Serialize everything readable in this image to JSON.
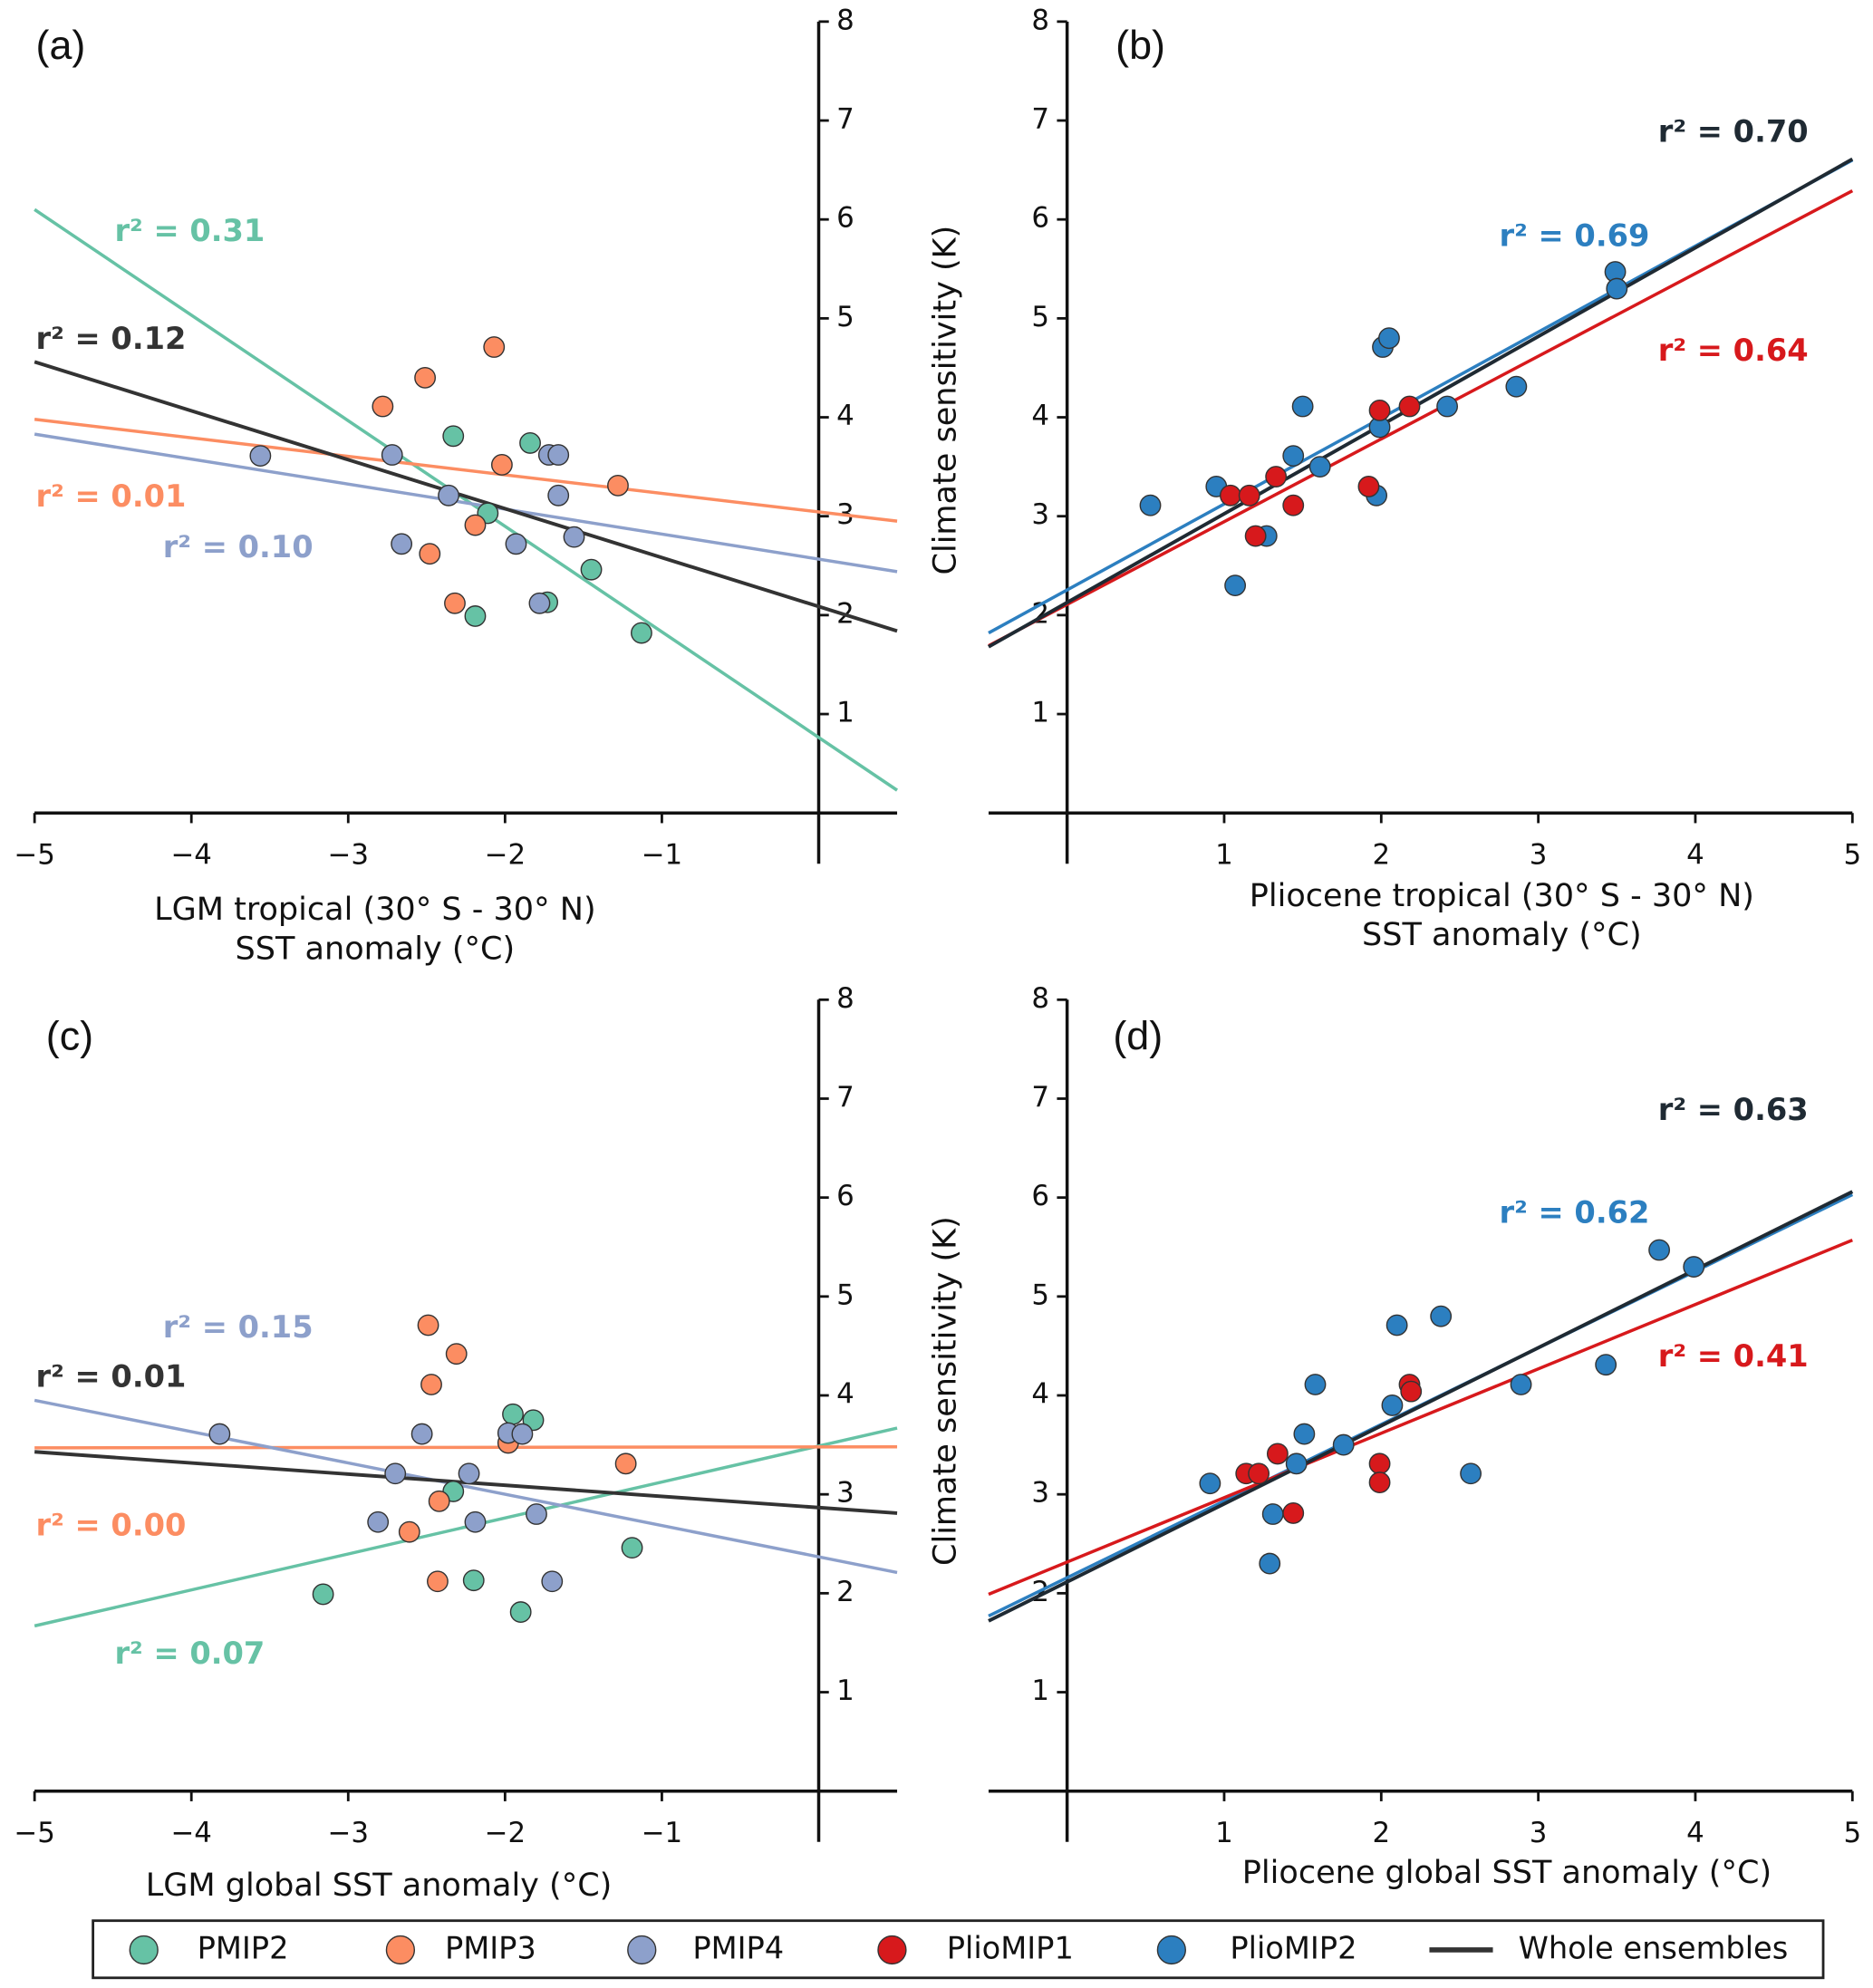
{
  "chart_data": [
    {
      "type": "scatter",
      "panel_label": "(a)",
      "xlabel": [
        "LGM tropical (30° S - 30° N)",
        "SST anomaly (°C)"
      ],
      "xlim": [
        -5,
        0.5
      ],
      "ylim": [
        0,
        8
      ],
      "xticks": [
        {
          "value": -5,
          "label": "−5"
        },
        {
          "value": -4,
          "label": "−4"
        },
        {
          "value": -3,
          "label": "−3"
        },
        {
          "value": -2,
          "label": "−2"
        },
        {
          "value": -1,
          "label": "−1"
        }
      ],
      "yticks": [
        1,
        2,
        3,
        4,
        5,
        6,
        7,
        8
      ],
      "y_axis_side": "right",
      "series": [
        {
          "name": "PMIP2",
          "color": "#66c2a5",
          "x": [
            -2.33,
            -1.84,
            -2.11,
            -1.45,
            -1.73,
            -2.19,
            -1.13
          ],
          "values": [
            3.81,
            3.74,
            3.03,
            2.46,
            2.13,
            1.99,
            1.82
          ],
          "fit": {
            "x": [
              -5,
              0.5
            ],
            "values": [
              6.1,
              0.23
            ],
            "label": "r² = 0.31"
          }
        },
        {
          "name": "PMIP3",
          "color": "#fc8d62",
          "x": [
            -2.07,
            -2.51,
            -2.78,
            -2.02,
            -1.28,
            -2.19,
            -2.48,
            -2.32
          ],
          "values": [
            4.71,
            4.4,
            4.11,
            3.52,
            3.31,
            2.91,
            2.62,
            2.12
          ],
          "fit": {
            "x": [
              -5,
              0.5
            ],
            "values": [
              3.98,
              2.95
            ],
            "label": "r² = 0.01"
          }
        },
        {
          "name": "PMIP4",
          "color": "#8da0cb",
          "x": [
            -3.56,
            -2.72,
            -1.72,
            -1.66,
            -2.36,
            -1.66,
            -1.56,
            -2.66,
            -1.93,
            -1.78
          ],
          "values": [
            3.61,
            3.62,
            3.62,
            3.62,
            3.21,
            3.21,
            2.79,
            2.72,
            2.72,
            2.12
          ],
          "fit": {
            "x": [
              -5,
              0.5
            ],
            "values": [
              3.83,
              2.44
            ],
            "label": "r² = 0.10"
          }
        }
      ],
      "whole": {
        "name": "Whole ensembles",
        "color": "#333333",
        "fit": {
          "x": [
            -5,
            0.5
          ],
          "values": [
            4.56,
            1.84
          ],
          "label": "r² = 0.12"
        }
      }
    },
    {
      "type": "scatter",
      "panel_label": "(b)",
      "xlabel": [
        "Pliocene tropical (30° S - 30° N)",
        "SST anomaly (°C)"
      ],
      "ylabel": "Climate sensitivity (K)",
      "xlim": [
        -0.5,
        5
      ],
      "ylim": [
        0,
        8
      ],
      "xticks": [
        1,
        2,
        3,
        4,
        5
      ],
      "yticks": [
        1,
        2,
        3,
        4,
        5,
        6,
        7,
        8
      ],
      "y_axis_side": "left",
      "series": [
        {
          "name": "PlioMIP2",
          "color": "#2c7fc0",
          "x": [
            0.53,
            0.95,
            1.07,
            1.27,
            1.44,
            1.5,
            1.61,
            1.97,
            1.99,
            2.01,
            2.05,
            2.42,
            2.86,
            3.49,
            3.5
          ],
          "values": [
            3.11,
            3.3,
            2.3,
            2.8,
            3.61,
            4.11,
            3.5,
            3.21,
            3.9,
            4.71,
            4.8,
            4.11,
            4.31,
            5.47,
            5.3
          ],
          "fit": {
            "x": [
              -0.5,
              5
            ],
            "values": [
              1.82,
              6.6
            ],
            "label": "r² = 0.69"
          }
        },
        {
          "name": "PlioMIP1",
          "color": "#d7191c",
          "x": [
            1.04,
            1.16,
            1.2,
            1.33,
            1.44,
            1.92,
            1.99,
            2.18
          ],
          "values": [
            3.21,
            3.21,
            2.8,
            3.4,
            3.11,
            3.3,
            4.07,
            4.11
          ],
          "fit": {
            "x": [
              -0.5,
              5
            ],
            "values": [
              1.69,
              6.29
            ],
            "label": "r² = 0.64"
          }
        }
      ],
      "whole": {
        "name": "Whole ensembles",
        "color": "#1f2a33",
        "fit": {
          "x": [
            -0.5,
            5
          ],
          "values": [
            1.68,
            6.61
          ],
          "label": "r² = 0.70"
        }
      }
    },
    {
      "type": "scatter",
      "panel_label": "(c)",
      "xlabel": [
        "LGM global SST anomaly (°C)"
      ],
      "xlim": [
        -5,
        0.5
      ],
      "ylim": [
        0,
        8
      ],
      "xticks": [
        {
          "value": -5,
          "label": "−5"
        },
        {
          "value": -4,
          "label": "−4"
        },
        {
          "value": -3,
          "label": "−3"
        },
        {
          "value": -2,
          "label": "−2"
        },
        {
          "value": -1,
          "label": "−1"
        }
      ],
      "yticks": [
        1,
        2,
        3,
        4,
        5,
        6,
        7,
        8
      ],
      "y_axis_side": "right",
      "series": [
        {
          "name": "PMIP2",
          "color": "#66c2a5",
          "x": [
            -3.16,
            -2.33,
            -1.95,
            -1.82,
            -2.2,
            -1.9,
            -1.19
          ],
          "values": [
            1.99,
            3.03,
            3.81,
            3.75,
            2.13,
            1.81,
            2.46
          ],
          "fit": {
            "x": [
              -5,
              0.5
            ],
            "values": [
              1.67,
              3.67
            ],
            "label": "r² = 0.07"
          }
        },
        {
          "name": "PMIP3",
          "color": "#fc8d62",
          "x": [
            -2.49,
            -2.31,
            -2.47,
            -1.98,
            -1.23,
            -2.42,
            -2.61,
            -2.43
          ],
          "values": [
            4.71,
            4.42,
            4.11,
            3.52,
            3.31,
            2.93,
            2.62,
            2.12
          ],
          "fit": {
            "x": [
              -5,
              0.5
            ],
            "values": [
              3.47,
              3.48
            ],
            "label": "r² = 0.00"
          }
        },
        {
          "name": "PMIP4",
          "color": "#8da0cb",
          "x": [
            -3.82,
            -2.53,
            -1.98,
            -1.89,
            -2.7,
            -2.23,
            -2.19,
            -2.81,
            -1.8,
            -1.7
          ],
          "values": [
            3.61,
            3.61,
            3.62,
            3.61,
            3.21,
            3.21,
            2.72,
            2.72,
            2.8,
            2.12
          ],
          "fit": {
            "x": [
              -5,
              0.5
            ],
            "values": [
              3.95,
              2.21
            ],
            "label": "r² = 0.15"
          }
        }
      ],
      "whole": {
        "name": "Whole ensembles",
        "color": "#333333",
        "fit": {
          "x": [
            -5,
            0.5
          ],
          "values": [
            3.43,
            2.81
          ],
          "label": "r² = 0.01"
        }
      }
    },
    {
      "type": "scatter",
      "panel_label": "(d)",
      "xlabel": [
        "Pliocene global SST anomaly (°C)"
      ],
      "ylabel": "Climate sensitivity (K)",
      "xlim": [
        -0.5,
        5
      ],
      "ylim": [
        0,
        8
      ],
      "xticks": [
        1,
        2,
        3,
        4,
        5
      ],
      "yticks": [
        1,
        2,
        3,
        4,
        5,
        6,
        7,
        8
      ],
      "y_axis_side": "left",
      "series": [
        {
          "name": "PlioMIP2",
          "color": "#2c7fc0",
          "x": [
            0.91,
            1.31,
            1.29,
            1.46,
            1.51,
            1.58,
            1.76,
            2.07,
            2.1,
            2.38,
            2.57,
            2.89,
            3.43,
            3.77,
            3.99
          ],
          "values": [
            3.11,
            2.8,
            2.3,
            3.31,
            3.61,
            4.11,
            3.5,
            3.9,
            4.71,
            4.8,
            3.21,
            4.11,
            4.31,
            5.47,
            5.3
          ],
          "fit": {
            "x": [
              -0.5,
              5
            ],
            "values": [
              1.77,
              6.03
            ],
            "label": "r² = 0.62"
          }
        },
        {
          "name": "PlioMIP1",
          "color": "#d7191c",
          "x": [
            1.14,
            1.22,
            1.34,
            1.44,
            1.99,
            1.99,
            2.18,
            2.19
          ],
          "values": [
            3.21,
            3.21,
            3.41,
            2.81,
            3.31,
            3.12,
            4.11,
            4.04
          ],
          "fit": {
            "x": [
              -0.5,
              5
            ],
            "values": [
              1.99,
              5.57
            ],
            "label": "r² = 0.41"
          }
        }
      ],
      "whole": {
        "name": "Whole ensembles",
        "color": "#1f2a33",
        "fit": {
          "x": [
            -0.5,
            5
          ],
          "values": [
            1.72,
            6.06
          ],
          "label": "r² = 0.63"
        }
      }
    }
  ]
}
